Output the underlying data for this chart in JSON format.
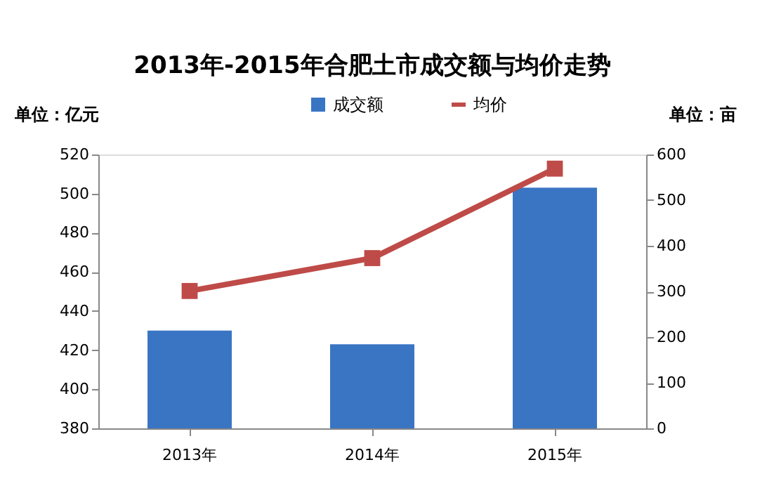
{
  "chart_data": {
    "type": "bar",
    "title": "2013年-2015年合肥土市成交额与均价走势",
    "ylabel": "单位：亿元",
    "y2label": "单位：亩",
    "categories": [
      "2013年",
      "2014年",
      "2015年"
    ],
    "series": [
      {
        "name": "成交额",
        "color": "#3a75c4",
        "values": [
          430,
          423,
          503
        ]
      },
      {
        "name": "均价",
        "type": "line",
        "axis": "y2",
        "color": "#be4b48",
        "marker": "square",
        "values": [
          301,
          373,
          569
        ]
      }
    ],
    "ylim": [
      380,
      520
    ],
    "yticks": [
      380,
      400,
      420,
      440,
      460,
      480,
      500,
      520
    ],
    "y2lim": [
      0,
      600
    ],
    "y2ticks": [
      0,
      100,
      200,
      300,
      400,
      500,
      600
    ],
    "grid": false,
    "legend": "top"
  }
}
